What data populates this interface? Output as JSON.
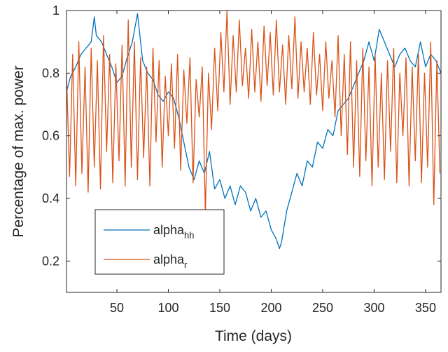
{
  "chart_data": {
    "type": "line",
    "title": "",
    "xlabel": "Time (days)",
    "ylabel": "Percentage of max. power",
    "xlim": [
      1,
      365
    ],
    "ylim": [
      0.1,
      1.0
    ],
    "xticks": [
      50,
      100,
      150,
      200,
      250,
      300,
      350
    ],
    "yticks": [
      0.2,
      0.4,
      0.6,
      0.8,
      1.0
    ],
    "ytick_labels": [
      "0.2",
      "0.4",
      "0.6",
      "0.8",
      "1"
    ],
    "grid": false,
    "legend": {
      "position": "bottom-left",
      "entries": [
        {
          "base": "alpha",
          "sub": "hh"
        },
        {
          "base": "alpha",
          "sub": "r"
        }
      ]
    },
    "series": [
      {
        "name": "alpha_hh",
        "color": "#0072BD",
        "x": [
          1,
          5,
          10,
          15,
          20,
          25,
          28,
          30,
          35,
          40,
          45,
          50,
          55,
          60,
          65,
          70,
          75,
          80,
          85,
          90,
          95,
          100,
          105,
          110,
          115,
          120,
          125,
          130,
          135,
          140,
          145,
          150,
          155,
          160,
          165,
          170,
          175,
          180,
          185,
          190,
          195,
          200,
          205,
          208,
          210,
          215,
          220,
          225,
          230,
          235,
          240,
          245,
          250,
          255,
          260,
          265,
          270,
          275,
          280,
          285,
          290,
          295,
          300,
          305,
          310,
          315,
          320,
          325,
          330,
          335,
          340,
          345,
          350,
          355,
          360,
          365
        ],
        "y": [
          0.74,
          0.79,
          0.82,
          0.86,
          0.88,
          0.9,
          0.98,
          0.92,
          0.9,
          0.86,
          0.82,
          0.77,
          0.79,
          0.85,
          0.9,
          0.99,
          0.84,
          0.8,
          0.78,
          0.73,
          0.71,
          0.74,
          0.72,
          0.66,
          0.58,
          0.5,
          0.46,
          0.52,
          0.48,
          0.55,
          0.43,
          0.46,
          0.4,
          0.44,
          0.38,
          0.44,
          0.42,
          0.36,
          0.4,
          0.34,
          0.36,
          0.3,
          0.27,
          0.24,
          0.26,
          0.36,
          0.42,
          0.48,
          0.44,
          0.52,
          0.5,
          0.58,
          0.56,
          0.62,
          0.6,
          0.68,
          0.7,
          0.72,
          0.76,
          0.8,
          0.84,
          0.9,
          0.84,
          0.94,
          0.9,
          0.86,
          0.82,
          0.86,
          0.88,
          0.84,
          0.82,
          0.9,
          0.82,
          0.86,
          0.84,
          0.8
        ]
      },
      {
        "name": "alpha_r",
        "color": "#D95319",
        "x": [
          1,
          4,
          7,
          10,
          13,
          16,
          19,
          22,
          25,
          28,
          31,
          34,
          37,
          40,
          43,
          46,
          49,
          52,
          55,
          58,
          61,
          64,
          67,
          70,
          73,
          76,
          79,
          82,
          85,
          88,
          91,
          94,
          97,
          100,
          103,
          106,
          109,
          112,
          115,
          118,
          121,
          124,
          127,
          130,
          133,
          136,
          139,
          142,
          145,
          148,
          151,
          154,
          157,
          160,
          163,
          166,
          169,
          172,
          175,
          178,
          181,
          184,
          187,
          190,
          193,
          196,
          199,
          202,
          205,
          208,
          211,
          214,
          217,
          220,
          223,
          226,
          229,
          232,
          235,
          238,
          241,
          244,
          247,
          250,
          253,
          256,
          259,
          262,
          265,
          268,
          271,
          274,
          277,
          280,
          283,
          286,
          289,
          292,
          295,
          298,
          301,
          304,
          307,
          310,
          313,
          316,
          319,
          322,
          325,
          328,
          331,
          334,
          337,
          340,
          343,
          346,
          349,
          352,
          355,
          358,
          361,
          364
        ],
        "y": [
          0.8,
          0.47,
          0.86,
          0.44,
          0.9,
          0.48,
          0.82,
          0.42,
          0.88,
          0.5,
          0.84,
          0.43,
          0.92,
          0.55,
          0.86,
          0.45,
          0.83,
          0.52,
          0.89,
          0.44,
          0.97,
          0.5,
          0.9,
          0.46,
          0.85,
          0.53,
          0.82,
          0.44,
          0.88,
          0.58,
          0.84,
          0.5,
          0.79,
          0.6,
          0.83,
          0.56,
          0.86,
          0.49,
          0.81,
          0.64,
          0.85,
          0.45,
          0.78,
          0.66,
          0.82,
          0.35,
          0.8,
          0.62,
          0.88,
          0.68,
          0.93,
          0.74,
          1.0,
          0.7,
          0.92,
          0.74,
          0.97,
          0.76,
          0.88,
          0.72,
          0.94,
          0.74,
          0.9,
          0.71,
          0.95,
          0.76,
          0.93,
          0.73,
          0.97,
          0.74,
          0.89,
          0.7,
          0.92,
          0.75,
          0.98,
          0.72,
          0.9,
          0.74,
          0.88,
          0.7,
          0.93,
          0.73,
          0.86,
          0.68,
          0.9,
          0.72,
          0.84,
          0.66,
          0.92,
          0.6,
          0.86,
          0.54,
          0.9,
          0.5,
          0.84,
          0.47,
          0.88,
          0.52,
          0.82,
          0.44,
          0.86,
          0.5,
          0.8,
          0.46,
          0.84,
          0.55,
          0.88,
          0.45,
          0.8,
          0.6,
          0.85,
          0.44,
          0.82,
          0.52,
          0.86,
          0.45,
          0.8,
          0.5,
          0.9,
          0.38,
          0.84,
          0.48
        ]
      }
    ]
  }
}
